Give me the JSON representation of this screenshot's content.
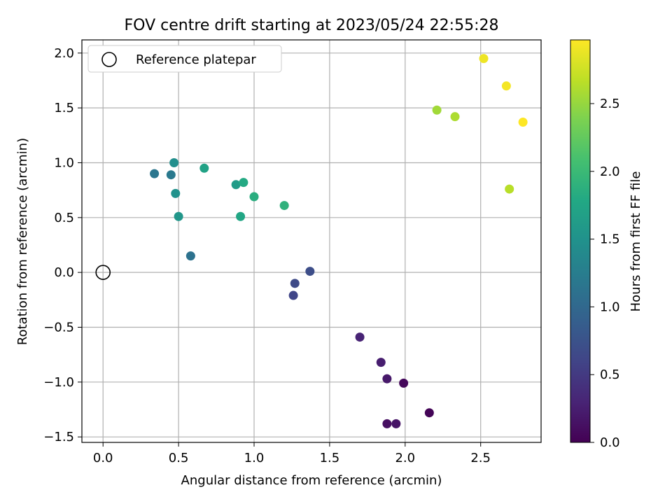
{
  "chart_data": {
    "type": "scatter",
    "title": "FOV centre drift starting at 2023/05/24 22:55:28",
    "xlabel": "Angular distance from reference (arcmin)",
    "ylabel": "Rotation from reference (arcmin)",
    "xlim": [
      -0.14,
      2.9
    ],
    "ylim": [
      -1.55,
      2.12
    ],
    "xticks": [
      0.0,
      0.5,
      1.0,
      1.5,
      2.0,
      2.5
    ],
    "xtick_labels": [
      "0.0",
      "0.5",
      "1.0",
      "1.5",
      "2.0",
      "2.5"
    ],
    "yticks": [
      -1.5,
      -1.0,
      -0.5,
      0.0,
      0.5,
      1.0,
      1.5,
      2.0
    ],
    "ytick_labels": [
      "−1.5",
      "−1.0",
      "−0.5",
      "0.0",
      "0.5",
      "1.0",
      "1.5",
      "2.0"
    ],
    "grid": true,
    "legend": {
      "placement": "top-left",
      "entries": [
        {
          "label": "Reference platepar",
          "marker": "open-circle",
          "color": "#000000"
        }
      ]
    },
    "reference": {
      "x": 0.0,
      "y": 0.0,
      "label": "Reference platepar"
    },
    "colorbar": {
      "label": "Hours from first FF file",
      "colormap": "viridis",
      "range": [
        0.0,
        2.97
      ],
      "ticks": [
        0.0,
        0.5,
        1.0,
        1.5,
        2.0,
        2.5
      ],
      "tick_labels": [
        "0.0",
        "0.5",
        "1.0",
        "1.5",
        "2.0",
        "2.5"
      ]
    },
    "points": [
      {
        "x": 2.16,
        "y": -1.28,
        "c": 0.03
      },
      {
        "x": 1.99,
        "y": -1.01,
        "c": 0.06
      },
      {
        "x": 1.88,
        "y": -1.38,
        "c": 0.12
      },
      {
        "x": 1.94,
        "y": -1.38,
        "c": 0.16
      },
      {
        "x": 1.88,
        "y": -0.97,
        "c": 0.2
      },
      {
        "x": 1.84,
        "y": -0.82,
        "c": 0.24
      },
      {
        "x": 1.7,
        "y": -0.59,
        "c": 0.3
      },
      {
        "x": 1.26,
        "y": -0.21,
        "c": 0.62
      },
      {
        "x": 1.27,
        "y": -0.1,
        "c": 0.66
      },
      {
        "x": 1.37,
        "y": 0.01,
        "c": 0.7
      },
      {
        "x": 0.58,
        "y": 0.15,
        "c": 1.12
      },
      {
        "x": 0.34,
        "y": 0.9,
        "c": 1.16
      },
      {
        "x": 0.45,
        "y": 0.89,
        "c": 1.2
      },
      {
        "x": 0.47,
        "y": 1.0,
        "c": 1.45
      },
      {
        "x": 0.48,
        "y": 0.72,
        "c": 1.5
      },
      {
        "x": 0.5,
        "y": 0.51,
        "c": 1.55
      },
      {
        "x": 0.88,
        "y": 0.8,
        "c": 1.62
      },
      {
        "x": 0.67,
        "y": 0.95,
        "c": 1.7
      },
      {
        "x": 0.91,
        "y": 0.51,
        "c": 1.76
      },
      {
        "x": 0.93,
        "y": 0.82,
        "c": 1.8
      },
      {
        "x": 1.0,
        "y": 0.69,
        "c": 1.85
      },
      {
        "x": 1.2,
        "y": 0.61,
        "c": 1.9
      },
      {
        "x": 2.21,
        "y": 1.48,
        "c": 2.55
      },
      {
        "x": 2.33,
        "y": 1.42,
        "c": 2.6
      },
      {
        "x": 2.69,
        "y": 0.76,
        "c": 2.65
      },
      {
        "x": 2.52,
        "y": 1.95,
        "c": 2.9
      },
      {
        "x": 2.67,
        "y": 1.7,
        "c": 2.93
      },
      {
        "x": 2.78,
        "y": 1.37,
        "c": 2.97
      }
    ]
  }
}
